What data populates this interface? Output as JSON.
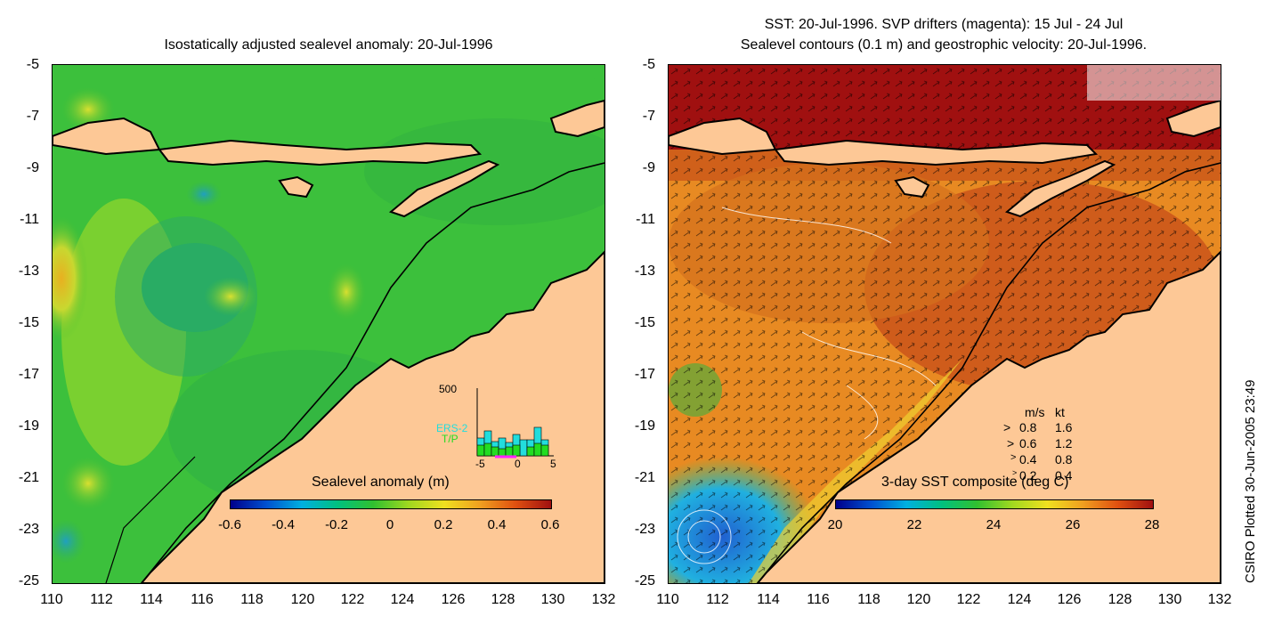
{
  "left_panel": {
    "title": "Isostatically adjusted sealevel anomaly: 20-Jul-1996",
    "colorbar_label": "Sealevel anomaly (m)",
    "colorbar_ticks": [
      "-0.6",
      "-0.4",
      "-0.2",
      "0",
      "0.2",
      "0.4",
      "0.6"
    ],
    "inset": {
      "ymax_label": "500",
      "series": [
        "ERS-2",
        "T/P"
      ],
      "x_ticks": [
        "-5",
        "0",
        "5"
      ],
      "ers2_color": "#22dddd",
      "tp_color": "#22dd22"
    }
  },
  "right_panel": {
    "title_line1": "SST: 20-Jul-1996. SVP drifters (magenta): 15 Jul - 24 Jul",
    "title_line2": "Sealevel contours (0.1 m) and geostrophic velocity: 20-Jul-1996.",
    "colorbar_label": "3-day SST composite (deg C)",
    "colorbar_ticks": [
      "20",
      "22",
      "24",
      "26",
      "28"
    ],
    "velocity_legend": {
      "header_ms": "m/s",
      "header_kt": "kt",
      "rows": [
        {
          "ms": "0.8",
          "kt": "1.6"
        },
        {
          "ms": "0.6",
          "kt": "1.2"
        },
        {
          "ms": "0.4",
          "kt": "0.8"
        },
        {
          "ms": "0.2",
          "kt": "0.4"
        }
      ]
    }
  },
  "axes": {
    "y_ticks": [
      "-5",
      "-7",
      "-9",
      "-11",
      "-13",
      "-15",
      "-17",
      "-19",
      "-21",
      "-23",
      "-25"
    ],
    "x_ticks": [
      "110",
      "112",
      "114",
      "116",
      "118",
      "120",
      "122",
      "124",
      "126",
      "128",
      "130",
      "132"
    ]
  },
  "credit": "CSIRO Plotted 30-Jun-2005 23:49",
  "colors": {
    "land": "#fdc896",
    "ocean_green": "#34c234",
    "sst_warm": "#d8641c",
    "sst_hot": "#a01010"
  }
}
